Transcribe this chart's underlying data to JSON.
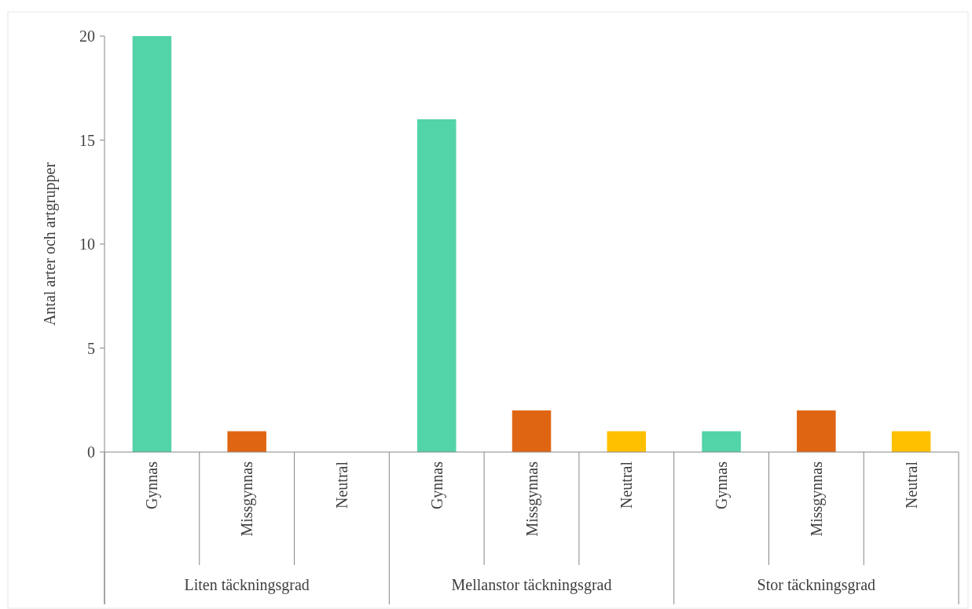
{
  "chart_data": {
    "type": "bar",
    "ylabel": "Antal arter och artgrupper",
    "categories": [
      "Gynnas",
      "Missgynnas",
      "Neutral",
      "Gynnas",
      "Missgynnas",
      "Neutral",
      "Gynnas",
      "Missgynnas",
      "Neutral"
    ],
    "values": [
      20,
      1,
      0,
      16,
      2,
      1,
      1,
      2,
      1
    ],
    "colors": [
      "#52d3a8",
      "#e06513",
      "#ffc000",
      "#52d3a8",
      "#e06513",
      "#ffc000",
      "#52d3a8",
      "#e06513",
      "#ffc000"
    ],
    "ylim": [
      0,
      20
    ],
    "yticks": [
      0,
      5,
      10,
      15,
      20
    ],
    "grid": false,
    "annotations": [
      "Liten täckningsgrad",
      "Mellanstor täckningsgrad",
      "Stor täckningsgrad"
    ]
  }
}
